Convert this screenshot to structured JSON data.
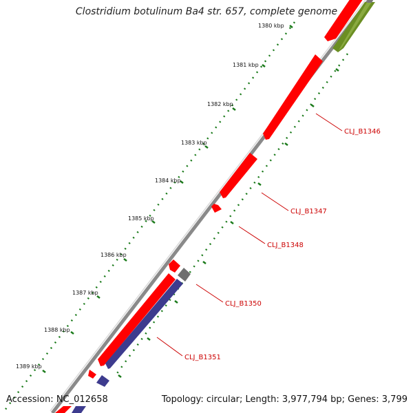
{
  "header": {
    "title": "Clostridium botulinum Ba4 str. 657, complete genome"
  },
  "footer": {
    "accession": "Accession: NC_012658",
    "summary": "Topology: circular; Length: 3,977,794 bp; Genes: 3,799"
  },
  "ruler": {
    "unit": "kbp",
    "ticks": [
      "1380 kbp",
      "1381 kbp",
      "1382 kbp",
      "1383 kbp",
      "1384 kbp",
      "1385 kbp",
      "1386 kbp",
      "1387 kbp",
      "1388 kbp",
      "1389 kbp"
    ]
  },
  "genes": {
    "labels": [
      "CLJ_B1346",
      "CLJ_B1347",
      "CLJ_B1348",
      "CLJ_B1350",
      "CLJ_B1351"
    ]
  },
  "colors": {
    "cds": "#ff0000",
    "rrna": "#3d3b8e",
    "other": "#6b8e23",
    "pseudo": "#777777",
    "backbone": "#808080",
    "tick": "#2b8a2b",
    "label": "#cc0000"
  }
}
